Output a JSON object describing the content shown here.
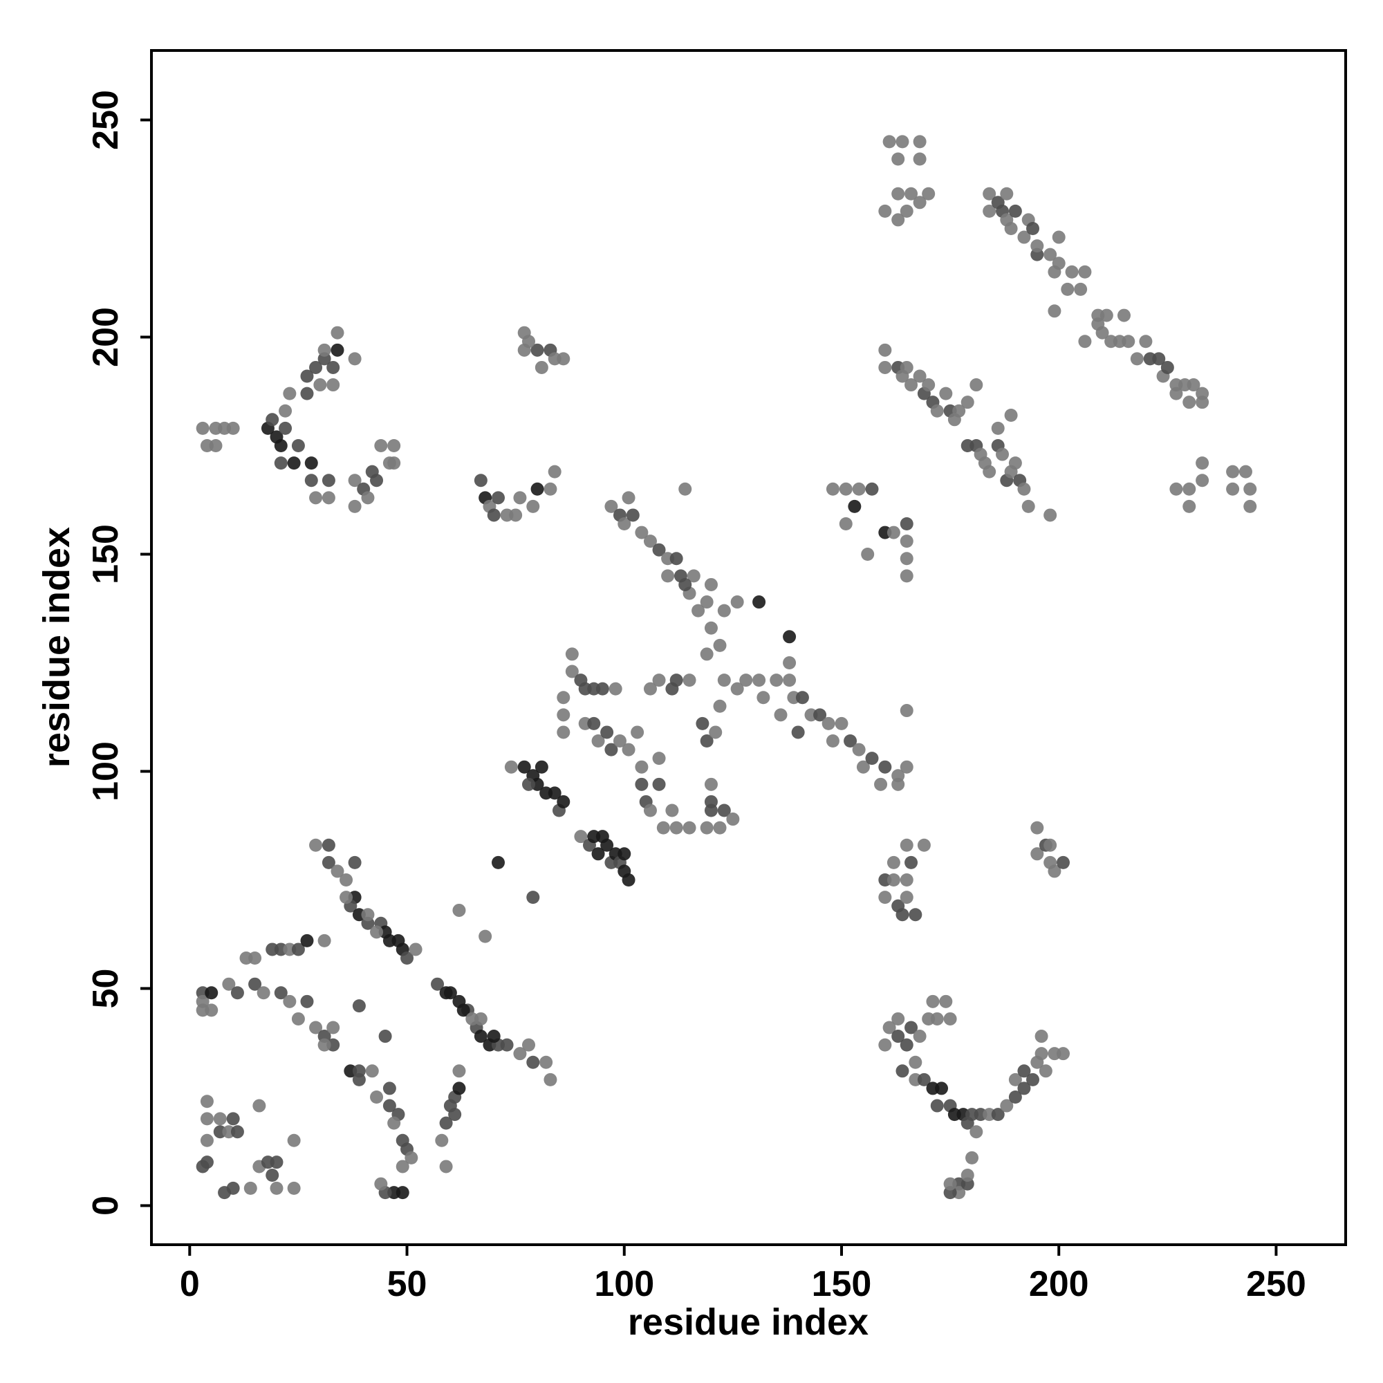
{
  "chart_data": {
    "type": "scatter",
    "x_label": "residue index",
    "y_label": "residue index",
    "xlim": [
      -8.8,
      266
    ],
    "ylim": [
      -9,
      266
    ],
    "xticks": [
      0,
      50,
      100,
      150,
      200,
      250
    ],
    "yticks": [
      0,
      50,
      100,
      150,
      200,
      250
    ],
    "grid": false,
    "x": [
      3,
      3,
      3,
      5,
      5,
      9,
      11,
      15,
      17,
      21,
      23,
      27,
      25,
      29,
      31,
      33,
      33,
      31,
      13,
      15,
      19,
      21,
      23,
      25,
      27,
      31,
      3,
      4,
      4,
      4,
      4,
      7,
      7,
      9,
      10,
      11,
      8,
      10,
      14,
      16,
      18,
      19,
      20,
      16,
      20,
      24,
      24,
      29,
      32,
      32,
      34,
      36,
      38,
      38,
      37,
      39,
      41,
      44,
      45,
      46,
      48,
      49,
      50,
      52,
      39,
      43,
      36,
      41,
      37,
      39,
      39,
      42,
      43,
      46,
      46,
      48,
      47,
      47,
      45,
      44,
      49,
      49,
      50,
      49,
      45,
      51,
      58,
      59,
      60,
      61,
      62,
      62,
      59,
      61,
      57,
      59,
      60,
      62,
      64,
      66,
      67,
      69,
      71,
      73,
      67,
      76,
      78,
      79,
      82,
      83,
      63,
      65,
      70,
      71,
      79,
      62,
      68,
      74,
      77,
      79,
      80,
      81,
      82,
      84,
      85,
      86,
      78,
      90,
      92,
      93,
      94,
      96,
      97,
      98,
      99,
      100,
      101,
      100,
      95,
      86,
      86,
      86,
      88,
      88,
      90,
      91,
      93,
      95,
      98,
      91,
      93,
      94,
      96,
      97,
      99,
      101,
      103,
      104,
      104,
      105,
      106,
      108,
      108,
      109,
      111,
      112,
      115,
      106,
      108,
      111,
      112,
      115,
      97,
      99,
      100,
      101,
      102,
      104,
      106,
      108,
      110,
      112,
      113,
      115,
      116,
      117,
      119,
      120,
      119,
      120,
      122,
      123,
      123,
      122,
      118,
      119,
      121,
      120,
      120,
      120,
      122,
      123,
      125,
      119,
      114,
      126,
      131,
      110,
      114,
      126,
      128,
      131,
      135,
      138,
      139,
      141,
      143,
      145,
      147,
      148,
      150,
      152,
      154,
      155,
      157,
      159,
      160,
      163,
      163,
      138,
      138,
      165,
      165,
      132,
      136,
      140,
      67,
      68,
      69,
      70,
      71,
      73,
      75,
      76,
      79,
      80,
      83,
      84,
      77,
      77,
      80,
      81,
      83,
      84,
      86,
      78,
      3,
      4,
      6,
      8,
      10,
      6,
      18,
      19,
      20,
      21,
      22,
      22,
      23,
      21,
      24,
      25,
      27,
      27,
      29,
      30,
      31,
      31,
      33,
      34,
      34,
      38,
      33,
      28,
      28,
      29,
      32,
      32,
      38,
      38,
      40,
      41,
      42,
      43,
      44,
      46,
      47,
      47,
      160,
      161,
      163,
      163,
      163,
      164,
      165,
      166,
      168,
      168,
      168,
      170,
      184,
      184,
      186,
      187,
      188,
      188,
      189,
      190,
      192,
      193,
      194,
      195,
      195,
      198,
      199,
      200,
      200,
      202,
      203,
      205,
      206,
      199,
      206,
      209,
      209,
      210,
      211,
      212,
      214,
      215,
      216,
      218,
      220,
      221,
      223,
      224,
      225,
      227,
      227,
      229,
      230,
      231,
      233,
      233,
      227,
      230,
      230,
      233,
      233,
      240,
      240,
      243,
      244,
      244,
      160,
      160,
      163,
      164,
      165,
      166,
      168,
      169,
      170,
      171,
      172,
      174,
      175,
      176,
      177,
      179,
      181,
      179,
      181,
      182,
      183,
      184,
      186,
      187,
      188,
      189,
      190,
      191,
      192,
      193,
      198,
      186,
      189,
      148,
      151,
      151,
      153,
      154,
      157,
      156,
      160,
      162,
      165,
      165,
      165,
      165,
      160,
      160,
      162,
      162,
      163,
      164,
      165,
      165,
      166,
      167,
      169,
      165,
      195,
      195,
      197,
      198,
      199,
      201,
      198,
      160,
      161,
      163,
      163,
      164,
      165,
      166,
      167,
      167,
      168,
      170,
      171,
      172,
      174,
      175,
      169,
      171,
      173,
      172,
      175,
      176,
      178,
      179,
      180,
      181,
      182,
      184,
      186,
      188,
      190,
      190,
      192,
      192,
      194,
      195,
      196,
      197,
      199,
      201,
      196,
      177,
      177,
      179,
      179,
      180,
      175,
      175
    ],
    "values": [
      49,
      47,
      45,
      49,
      45,
      51,
      49,
      51,
      49,
      49,
      47,
      47,
      43,
      41,
      39,
      41,
      37,
      37,
      57,
      57,
      59,
      59,
      59,
      59,
      61,
      61,
      9,
      10,
      15,
      20,
      24,
      20,
      17,
      17,
      20,
      17,
      3,
      4,
      4,
      9,
      10,
      7,
      10,
      23,
      4,
      15,
      4,
      83,
      83,
      79,
      77,
      75,
      79,
      71,
      69,
      67,
      65,
      65,
      63,
      61,
      61,
      59,
      57,
      59,
      46,
      63,
      71,
      67,
      31,
      29,
      31,
      31,
      25,
      27,
      23,
      21,
      19,
      3,
      3,
      5,
      3,
      9,
      13,
      15,
      39,
      11,
      15,
      19,
      23,
      25,
      27,
      31,
      9,
      21,
      51,
      49,
      49,
      47,
      45,
      41,
      39,
      37,
      37,
      37,
      43,
      35,
      37,
      33,
      33,
      29,
      45,
      43,
      39,
      79,
      71,
      68,
      62,
      101,
      101,
      99,
      97,
      101,
      95,
      95,
      91,
      93,
      97,
      85,
      83,
      85,
      81,
      83,
      79,
      81,
      79,
      77,
      75,
      81,
      85,
      117,
      113,
      109,
      123,
      127,
      121,
      119,
      119,
      119,
      119,
      111,
      111,
      107,
      109,
      105,
      107,
      105,
      109,
      97,
      101,
      93,
      91,
      97,
      103,
      87,
      91,
      87,
      87,
      119,
      121,
      119,
      121,
      121,
      161,
      159,
      157,
      163,
      159,
      155,
      153,
      151,
      149,
      149,
      145,
      141,
      145,
      137,
      139,
      143,
      127,
      133,
      129,
      137,
      121,
      115,
      111,
      107,
      109,
      97,
      93,
      91,
      87,
      91,
      89,
      87,
      165,
      139,
      139,
      145,
      143,
      119,
      121,
      121,
      121,
      121,
      117,
      117,
      113,
      113,
      111,
      107,
      111,
      107,
      105,
      101,
      103,
      97,
      101,
      99,
      97,
      131,
      125,
      101,
      114,
      117,
      113,
      109,
      167,
      163,
      161,
      159,
      163,
      159,
      159,
      163,
      161,
      165,
      165,
      169,
      201,
      197,
      197,
      193,
      197,
      195,
      195,
      199,
      179,
      175,
      179,
      179,
      179,
      175,
      179,
      181,
      177,
      175,
      179,
      183,
      187,
      171,
      171,
      175,
      187,
      191,
      193,
      189,
      195,
      197,
      193,
      197,
      201,
      195,
      189,
      167,
      171,
      163,
      167,
      163,
      167,
      161,
      165,
      163,
      169,
      167,
      175,
      171,
      175,
      171,
      229,
      245,
      241,
      233,
      227,
      245,
      229,
      233,
      245,
      241,
      231,
      233,
      233,
      229,
      231,
      229,
      227,
      233,
      225,
      229,
      223,
      227,
      225,
      219,
      221,
      219,
      215,
      217,
      223,
      211,
      215,
      211,
      215,
      206,
      199,
      205,
      203,
      201,
      205,
      199,
      199,
      205,
      199,
      195,
      199,
      195,
      195,
      191,
      193,
      187,
      189,
      189,
      185,
      189,
      185,
      187,
      165,
      165,
      161,
      167,
      171,
      165,
      169,
      169,
      165,
      161,
      197,
      193,
      193,
      191,
      193,
      189,
      191,
      187,
      189,
      185,
      183,
      187,
      183,
      181,
      183,
      185,
      189,
      175,
      175,
      173,
      171,
      169,
      175,
      173,
      167,
      169,
      171,
      167,
      165,
      161,
      159,
      179,
      182,
      165,
      165,
      157,
      161,
      165,
      165,
      150,
      155,
      155,
      157,
      153,
      149,
      145,
      71,
      75,
      79,
      75,
      69,
      67,
      71,
      75,
      79,
      67,
      83,
      83,
      87,
      81,
      83,
      79,
      77,
      79,
      83,
      37,
      41,
      39,
      43,
      31,
      37,
      41,
      33,
      29,
      39,
      43,
      47,
      43,
      47,
      43,
      29,
      27,
      27,
      23,
      23,
      21,
      21,
      19,
      21,
      17,
      21,
      21,
      21,
      23,
      25,
      29,
      31,
      27,
      29,
      33,
      35,
      31,
      35,
      35,
      39,
      5,
      3,
      5,
      7,
      11,
      3,
      5
    ],
    "colors": [
      "#4d4d4d",
      "#7a7a7a",
      "#7a7a7a",
      "#1a1a1a",
      "#7a7a7a",
      "#7a7a7a",
      "#4d4d4d",
      "#4d4d4d",
      "#7a7a7a",
      "#4d4d4d",
      "#7a7a7a",
      "#4d4d4d",
      "#7a7a7a",
      "#7a7a7a",
      "#4d4d4d",
      "#7a7a7a",
      "#4d4d4d",
      "#7a7a7a",
      "#7a7a7a",
      "#7a7a7a",
      "#4d4d4d",
      "#4d4d4d",
      "#7a7a7a",
      "#4d4d4d",
      "#1a1a1a",
      "#7a7a7a",
      "#4d4d4d",
      "#4d4d4d",
      "#7a7a7a",
      "#7a7a7a",
      "#7a7a7a",
      "#7a7a7a",
      "#4d4d4d",
      "#7a7a7a",
      "#4d4d4d",
      "#4d4d4d",
      "#4d4d4d",
      "#4d4d4d",
      "#7a7a7a",
      "#7a7a7a",
      "#4d4d4d",
      "#4d4d4d",
      "#4d4d4d",
      "#7a7a7a",
      "#7a7a7a",
      "#7a7a7a",
      "#7a7a7a",
      "#7a7a7a",
      "#4d4d4d",
      "#4d4d4d",
      "#7a7a7a",
      "#7a7a7a",
      "#4d4d4d",
      "#1a1a1a",
      "#4d4d4d",
      "#1a1a1a",
      "#4d4d4d",
      "#4d4d4d",
      "#1a1a1a",
      "#1a1a1a",
      "#1a1a1a",
      "#1a1a1a",
      "#4d4d4d",
      "#7a7a7a",
      "#4d4d4d",
      "#7a7a7a",
      "#7a7a7a",
      "#7a7a7a",
      "#1a1a1a",
      "#4d4d4d",
      "#4d4d4d",
      "#7a7a7a",
      "#7a7a7a",
      "#4d4d4d",
      "#4d4d4d",
      "#4d4d4d",
      "#7a7a7a",
      "#1a1a1a",
      "#4d4d4d",
      "#7a7a7a",
      "#1a1a1a",
      "#7a7a7a",
      "#4d4d4d",
      "#4d4d4d",
      "#4d4d4d",
      "#7a7a7a",
      "#7a7a7a",
      "#4d4d4d",
      "#4d4d4d",
      "#4d4d4d",
      "#1a1a1a",
      "#7a7a7a",
      "#7a7a7a",
      "#4d4d4d",
      "#4d4d4d",
      "#1a1a1a",
      "#1a1a1a",
      "#1a1a1a",
      "#4d4d4d",
      "#4d4d4d",
      "#1a1a1a",
      "#1a1a1a",
      "#4d4d4d",
      "#4d4d4d",
      "#7a7a7a",
      "#7a7a7a",
      "#7a7a7a",
      "#4d4d4d",
      "#7a7a7a",
      "#7a7a7a",
      "#1a1a1a",
      "#7a7a7a",
      "#1a1a1a",
      "#1a1a1a",
      "#4d4d4d",
      "#7a7a7a",
      "#7a7a7a",
      "#7a7a7a",
      "#1a1a1a",
      "#1a1a1a",
      "#1a1a1a",
      "#1a1a1a",
      "#1a1a1a",
      "#1a1a1a",
      "#4d4d4d",
      "#1a1a1a",
      "#4d4d4d",
      "#7a7a7a",
      "#4d4d4d",
      "#1a1a1a",
      "#1a1a1a",
      "#1a1a1a",
      "#4d4d4d",
      "#1a1a1a",
      "#4d4d4d",
      "#1a1a1a",
      "#1a1a1a",
      "#1a1a1a",
      "#1a1a1a",
      "#7a7a7a",
      "#7a7a7a",
      "#7a7a7a",
      "#7a7a7a",
      "#7a7a7a",
      "#4d4d4d",
      "#4d4d4d",
      "#4d4d4d",
      "#4d4d4d",
      "#7a7a7a",
      "#7a7a7a",
      "#4d4d4d",
      "#7a7a7a",
      "#4d4d4d",
      "#4d4d4d",
      "#7a7a7a",
      "#7a7a7a",
      "#7a7a7a",
      "#4d4d4d",
      "#7a7a7a",
      "#4d4d4d",
      "#7a7a7a",
      "#4d4d4d",
      "#7a7a7a",
      "#7a7a7a",
      "#7a7a7a",
      "#7a7a7a",
      "#7a7a7a",
      "#7a7a7a",
      "#7a7a7a",
      "#4d4d4d",
      "#4d4d4d",
      "#7a7a7a",
      "#7a7a7a",
      "#4d4d4d",
      "#7a7a7a",
      "#7a7a7a",
      "#4d4d4d",
      "#7a7a7a",
      "#7a7a7a",
      "#4d4d4d",
      "#7a7a7a",
      "#4d4d4d",
      "#4d4d4d",
      "#7a7a7a",
      "#7a7a7a",
      "#7a7a7a",
      "#7a7a7a",
      "#7a7a7a",
      "#7a7a7a",
      "#7a7a7a",
      "#7a7a7a",
      "#7a7a7a",
      "#7a7a7a",
      "#7a7a7a",
      "#4d4d4d",
      "#4d4d4d",
      "#7a7a7a",
      "#7a7a7a",
      "#4d4d4d",
      "#4d4d4d",
      "#7a7a7a",
      "#4d4d4d",
      "#7a7a7a",
      "#7a7a7a",
      "#7a7a7a",
      "#7a7a7a",
      "#1a1a1a",
      "#7a7a7a",
      "#4d4d4d",
      "#7a7a7a",
      "#7a7a7a",
      "#7a7a7a",
      "#7a7a7a",
      "#7a7a7a",
      "#7a7a7a",
      "#4d4d4d",
      "#7a7a7a",
      "#4d4d4d",
      "#7a7a7a",
      "#7a7a7a",
      "#7a7a7a",
      "#4d4d4d",
      "#7a7a7a",
      "#7a7a7a",
      "#4d4d4d",
      "#7a7a7a",
      "#4d4d4d",
      "#7a7a7a",
      "#7a7a7a",
      "#1a1a1a",
      "#7a7a7a",
      "#7a7a7a",
      "#7a7a7a",
      "#7a7a7a",
      "#7a7a7a",
      "#4d4d4d",
      "#4d4d4d",
      "#1a1a1a",
      "#7a7a7a",
      "#4d4d4d",
      "#4d4d4d",
      "#7a7a7a",
      "#7a7a7a",
      "#7a7a7a",
      "#7a7a7a",
      "#1a1a1a",
      "#7a7a7a",
      "#7a7a7a",
      "#7a7a7a",
      "#7a7a7a",
      "#4d4d4d",
      "#7a7a7a",
      "#4d4d4d",
      "#7a7a7a",
      "#7a7a7a",
      "#7a7a7a",
      "#7a7a7a",
      "#7a7a7a",
      "#7a7a7a",
      "#7a7a7a",
      "#7a7a7a",
      "#7a7a7a",
      "#1a1a1a",
      "#4d4d4d",
      "#1a1a1a",
      "#1a1a1a",
      "#4d4d4d",
      "#7a7a7a",
      "#7a7a7a",
      "#4d4d4d",
      "#1a1a1a",
      "#4d4d4d",
      "#4d4d4d",
      "#4d4d4d",
      "#4d4d4d",
      "#7a7a7a",
      "#4d4d4d",
      "#7a7a7a",
      "#4d4d4d",
      "#1a1a1a",
      "#7a7a7a",
      "#7a7a7a",
      "#7a7a7a",
      "#4d4d4d",
      "#1a1a1a",
      "#7a7a7a",
      "#4d4d4d",
      "#7a7a7a",
      "#7a7a7a",
      "#7a7a7a",
      "#4d4d4d",
      "#7a7a7a",
      "#4d4d4d",
      "#4d4d4d",
      "#7a7a7a",
      "#7a7a7a",
      "#7a7a7a",
      "#7a7a7a",
      "#7a7a7a",
      "#7a7a7a",
      "#7a7a7a",
      "#7a7a7a",
      "#7a7a7a",
      "#7a7a7a",
      "#7a7a7a",
      "#7a7a7a",
      "#7a7a7a",
      "#7a7a7a",
      "#7a7a7a",
      "#7a7a7a",
      "#7a7a7a",
      "#7a7a7a",
      "#4d4d4d",
      "#4d4d4d",
      "#7a7a7a",
      "#7a7a7a",
      "#7a7a7a",
      "#4d4d4d",
      "#7a7a7a",
      "#7a7a7a",
      "#4d4d4d",
      "#4d4d4d",
      "#7a7a7a",
      "#7a7a7a",
      "#7a7a7a",
      "#7a7a7a",
      "#7a7a7a",
      "#7a7a7a",
      "#7a7a7a",
      "#7a7a7a",
      "#7a7a7a",
      "#7a7a7a",
      "#7a7a7a",
      "#7a7a7a",
      "#7a7a7a",
      "#7a7a7a",
      "#7a7a7a",
      "#7a7a7a",
      "#7a7a7a",
      "#7a7a7a",
      "#7a7a7a",
      "#7a7a7a",
      "#7a7a7a",
      "#4d4d4d",
      "#4d4d4d",
      "#7a7a7a",
      "#4d4d4d",
      "#7a7a7a",
      "#7a7a7a",
      "#7a7a7a",
      "#7a7a7a",
      "#7a7a7a",
      "#7a7a7a",
      "#7a7a7a",
      "#7a7a7a",
      "#7a7a7a",
      "#7a7a7a",
      "#7a7a7a",
      "#7a7a7a",
      "#7a7a7a",
      "#7a7a7a",
      "#7a7a7a",
      "#7a7a7a",
      "#7a7a7a",
      "#7a7a7a",
      "#7a7a7a",
      "#4d4d4d",
      "#7a7a7a",
      "#7a7a7a",
      "#7a7a7a",
      "#7a7a7a",
      "#4d4d4d",
      "#7a7a7a",
      "#4d4d4d",
      "#7a7a7a",
      "#7a7a7a",
      "#4d4d4d",
      "#7a7a7a",
      "#7a7a7a",
      "#7a7a7a",
      "#7a7a7a",
      "#4d4d4d",
      "#4d4d4d",
      "#7a7a7a",
      "#7a7a7a",
      "#7a7a7a",
      "#4d4d4d",
      "#7a7a7a",
      "#4d4d4d",
      "#7a7a7a",
      "#7a7a7a",
      "#4d4d4d",
      "#7a7a7a",
      "#7a7a7a",
      "#7a7a7a",
      "#7a7a7a",
      "#7a7a7a",
      "#7a7a7a",
      "#7a7a7a",
      "#7a7a7a",
      "#1a1a1a",
      "#7a7a7a",
      "#4d4d4d",
      "#7a7a7a",
      "#1a1a1a",
      "#7a7a7a",
      "#4d4d4d",
      "#7a7a7a",
      "#7a7a7a",
      "#7a7a7a",
      "#7a7a7a",
      "#4d4d4d",
      "#7a7a7a",
      "#7a7a7a",
      "#4d4d4d",
      "#4d4d4d",
      "#7a7a7a",
      "#7a7a7a",
      "#4d4d4d",
      "#4d4d4d",
      "#7a7a7a",
      "#7a7a7a",
      "#7a7a7a",
      "#7a7a7a",
      "#4d4d4d",
      "#7a7a7a",
      "#7a7a7a",
      "#4d4d4d",
      "#7a7a7a",
      "#7a7a7a",
      "#7a7a7a",
      "#4d4d4d",
      "#7a7a7a",
      "#4d4d4d",
      "#4d4d4d",
      "#4d4d4d",
      "#7a7a7a",
      "#7a7a7a",
      "#7a7a7a",
      "#7a7a7a",
      "#7a7a7a",
      "#7a7a7a",
      "#7a7a7a",
      "#7a7a7a",
      "#4d4d4d",
      "#1a1a1a",
      "#1a1a1a",
      "#4d4d4d",
      "#4d4d4d",
      "#1a1a1a",
      "#1a1a1a",
      "#4d4d4d",
      "#4d4d4d",
      "#7a7a7a",
      "#4d4d4d",
      "#7a7a7a",
      "#4d4d4d",
      "#7a7a7a",
      "#4d4d4d",
      "#7a7a7a",
      "#4d4d4d",
      "#4d4d4d",
      "#4d4d4d",
      "#7a7a7a",
      "#7a7a7a",
      "#7a7a7a",
      "#7a7a7a",
      "#7a7a7a",
      "#7a7a7a",
      "#4d4d4d",
      "#7a7a7a",
      "#4d4d4d",
      "#7a7a7a",
      "#7a7a7a",
      "#4d4d4d",
      "#7a7a7a"
    ]
  }
}
